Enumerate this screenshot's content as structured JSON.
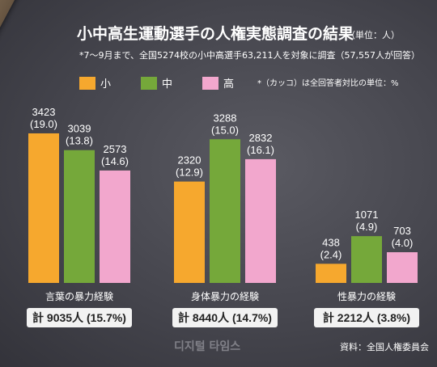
{
  "title": "小中高生運動選手の人権実態調査の結果",
  "unit": "（単位：人）",
  "subtitle": "*7～9月まで、全国5274校の小中高選手63,211人を対象に調査（57,557人が回答）",
  "note": "*（カッコ）は全回答者対比の単位：%",
  "source": "資料：全国人権委員会",
  "watermark": "디지털 타임스",
  "colors": {
    "小": "#f6a82e",
    "中": "#75a83a",
    "高": "#f2a7cd",
    "total_box": "#f2f2f2"
  },
  "chart_data": {
    "type": "bar",
    "legend_position": "top",
    "categories": [
      "言葉の暴力経験",
      "身体暴力の経験",
      "性暴力の経験"
    ],
    "series": [
      {
        "name": "小",
        "values": [
          3423,
          2320,
          438
        ],
        "percent_labels": [
          "(19.0)",
          "(12.9)",
          "(2.4)"
        ]
      },
      {
        "name": "中",
        "values": [
          3039,
          3288,
          1071
        ],
        "percent_labels": [
          "(13.8)",
          "(15.0)",
          "(4.9)"
        ]
      },
      {
        "name": "高",
        "values": [
          2573,
          2832,
          703
        ],
        "percent_labels": [
          "(14.6)",
          "(16.1)",
          "(4.0)"
        ]
      }
    ],
    "totals": [
      "計 9035人 (15.7%)",
      "計 8440人 (14.7%)",
      "計 2212人 (3.8%)"
    ],
    "ylim": [
      0,
      3700
    ],
    "grid": false
  }
}
